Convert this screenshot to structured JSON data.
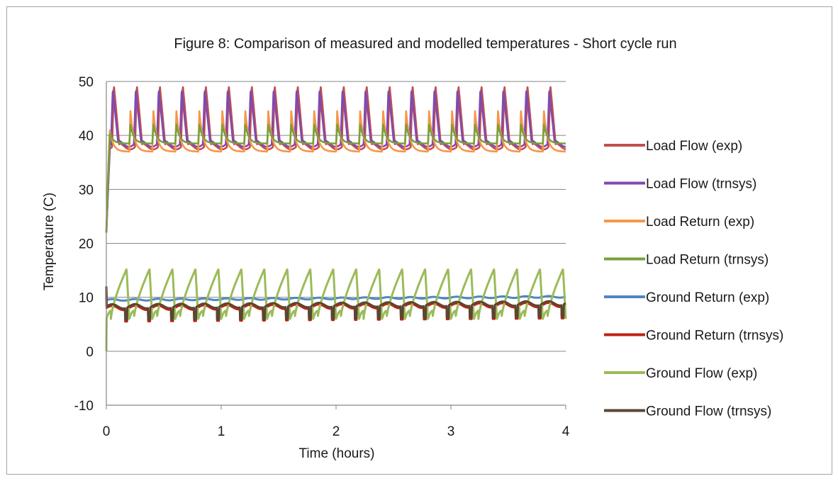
{
  "chart_data": {
    "type": "line",
    "title": "Figure 8: Comparison of measured and modelled temperatures - Short cycle run",
    "xlabel": "Time (hours)",
    "ylabel": "Temperature (C)",
    "xlim": [
      0,
      4
    ],
    "ylim": [
      -10,
      50
    ],
    "x_ticks": [
      "0",
      "1",
      "2",
      "3",
      "4"
    ],
    "y_ticks": [
      "-10",
      "0",
      "10",
      "20",
      "30",
      "40",
      "50"
    ],
    "grid": "horizontal",
    "legend_position": "right",
    "cycle_period_hours": 0.2,
    "series": [
      {
        "name": "Load Flow (exp)",
        "color": "#c0504d",
        "shape": "spike",
        "base": 38,
        "peak": 49.3,
        "start": 0.05
      },
      {
        "name": "Load Flow (trnsys)",
        "color": "#7f4ab3",
        "shape": "spike",
        "base": 38.5,
        "peak": 48.5,
        "start": 0.04
      },
      {
        "name": "Load Return (exp)",
        "color": "#f79646",
        "shape": "decay",
        "base": 37,
        "peak": 44.5,
        "start": 0.0
      },
      {
        "name": "Load Return (trnsys)",
        "color": "#77a03c",
        "shape": "decay",
        "base": 38.5,
        "peak": 42,
        "start": 0.0
      },
      {
        "name": "Ground Return (exp)",
        "color": "#4f86c6",
        "shape": "flat",
        "base": 9.5,
        "end": 10.1,
        "start": 0.0
      },
      {
        "name": "Ground Return (trnsys)",
        "color": "#c0230f",
        "shape": "dip",
        "base": 8.0,
        "end": 8.6,
        "start": 0.0
      },
      {
        "name": "Ground Flow (exp)",
        "color": "#9bbb59",
        "shape": "saw",
        "base": 6.0,
        "peak": 15.2,
        "start": 0.0
      },
      {
        "name": "Ground Flow (trnsys)",
        "color": "#5a4632",
        "shape": "dip",
        "base": 8.3,
        "end": 8.9,
        "start": 0.0
      }
    ]
  }
}
